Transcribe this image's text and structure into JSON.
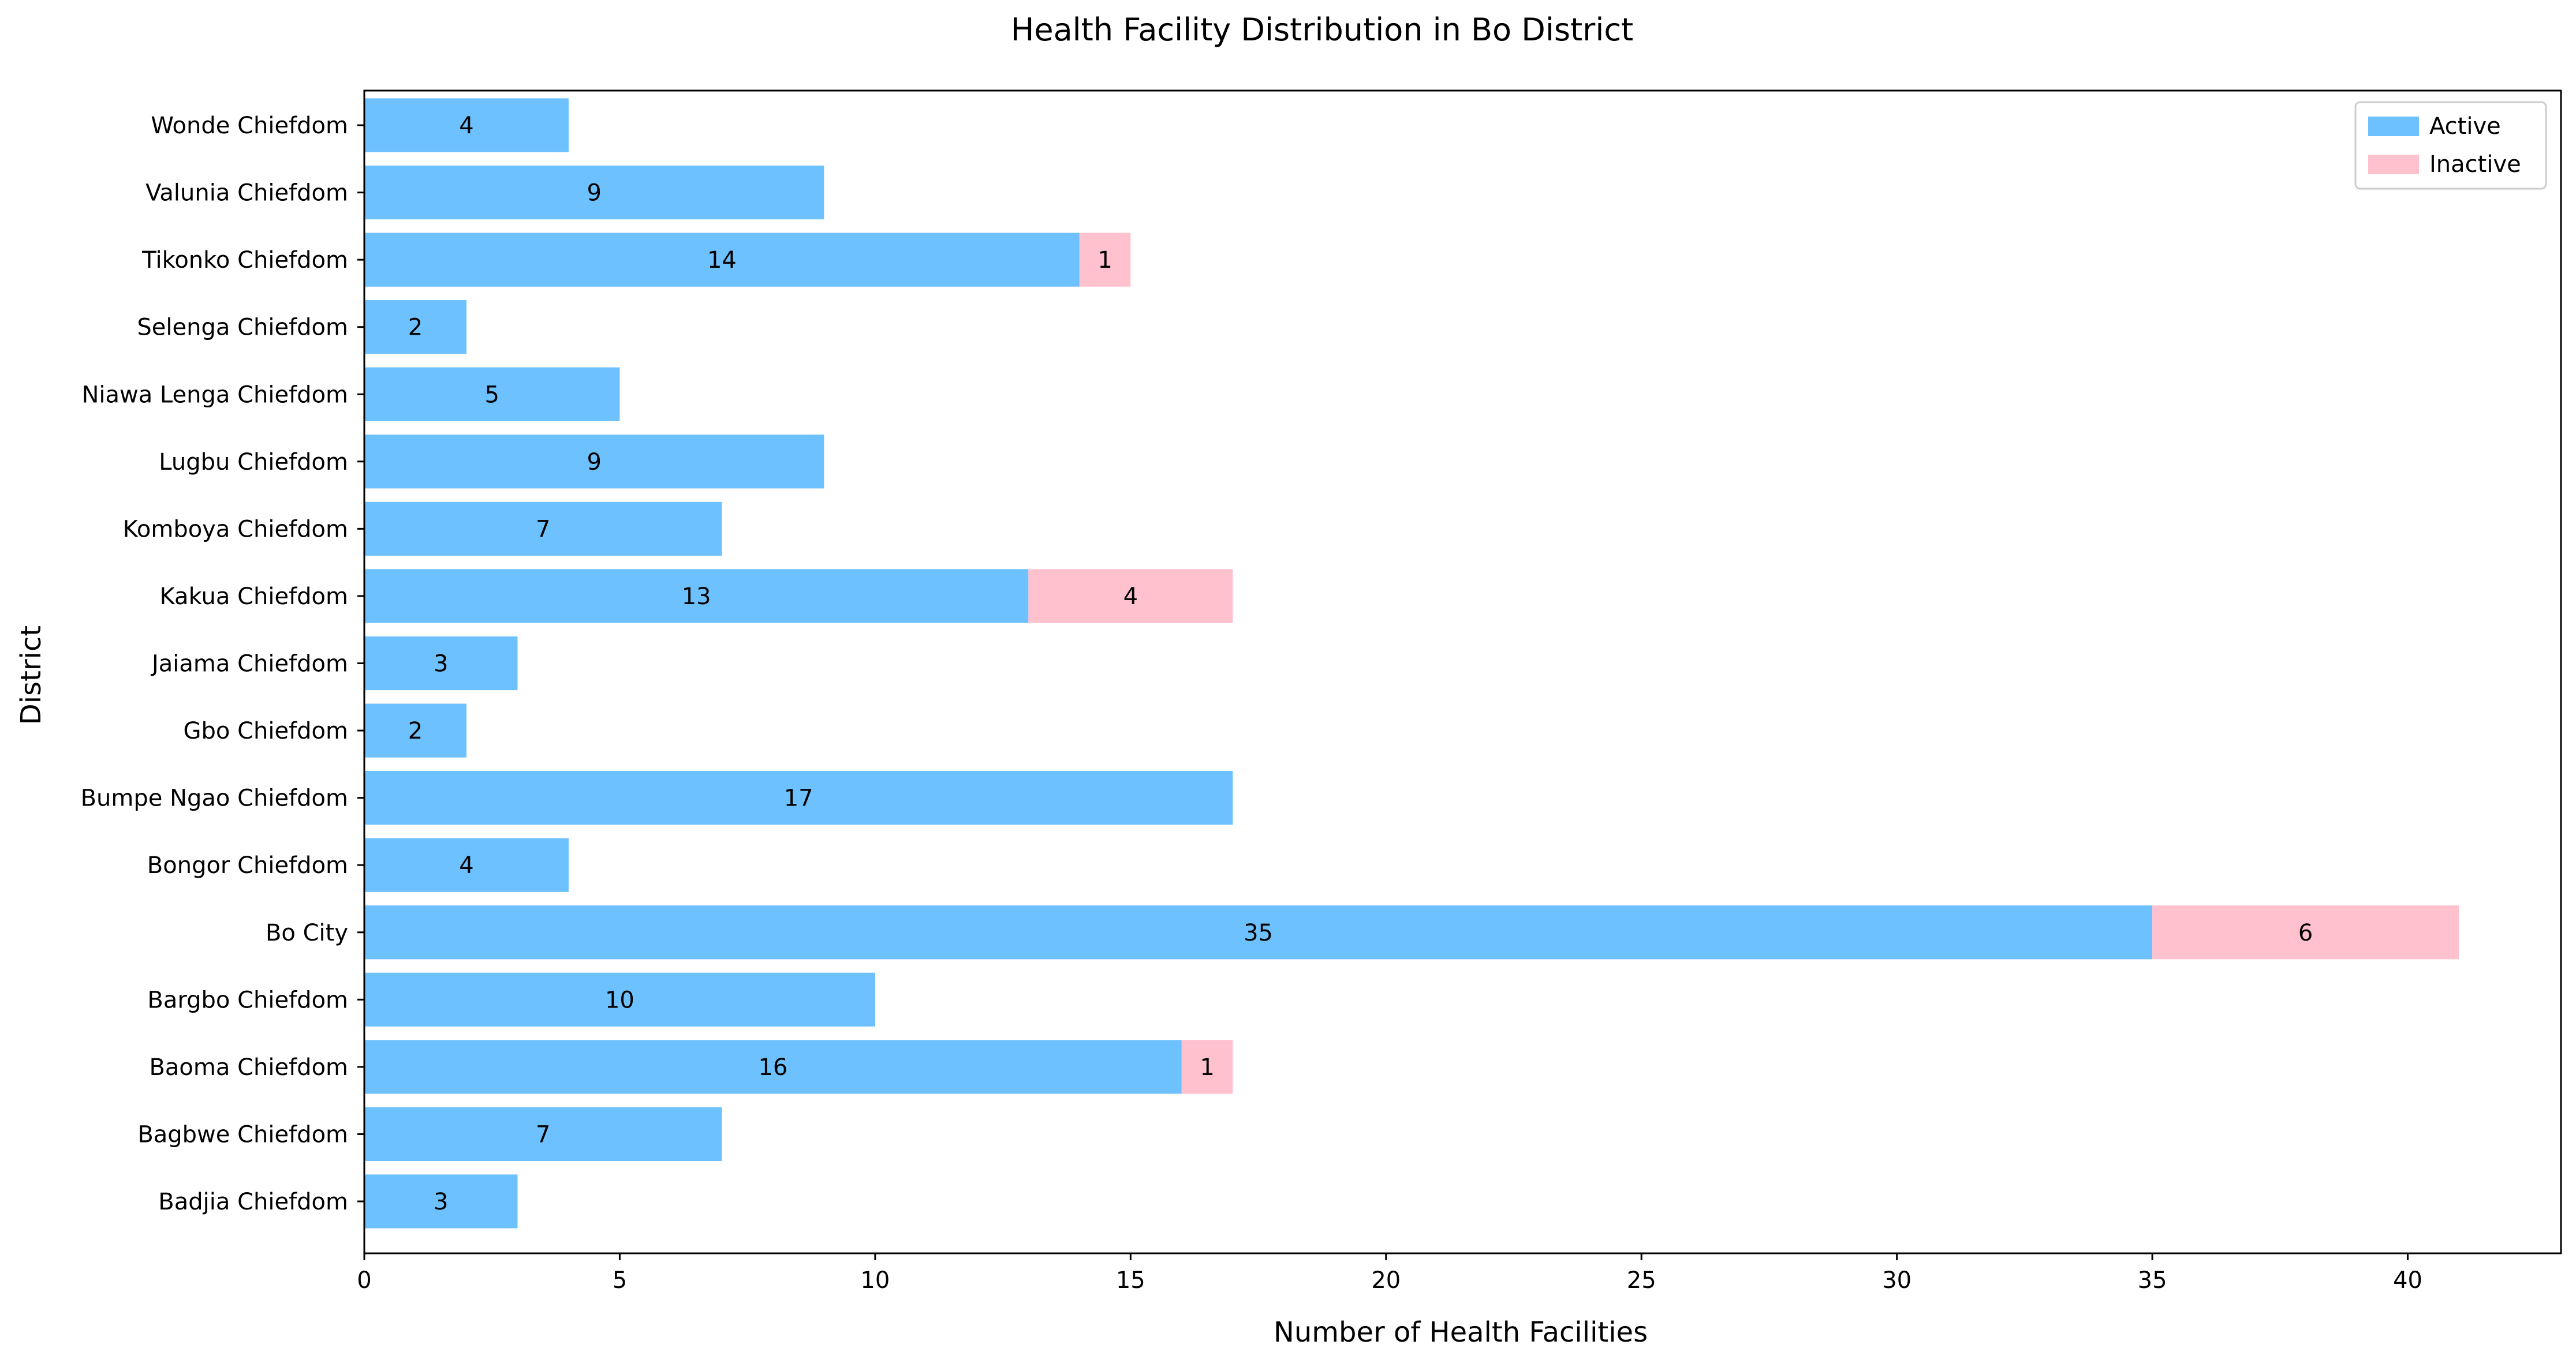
{
  "chart_data": {
    "type": "bar",
    "orientation": "horizontal",
    "stacked": true,
    "title": "Health Facility Distribution in Bo District",
    "xlabel": "Number of Health Facilities",
    "ylabel": "District",
    "xlim": [
      0,
      43
    ],
    "xticks": [
      0,
      5,
      10,
      15,
      20,
      25,
      30,
      35,
      40
    ],
    "grid": false,
    "legend_position": "top-right",
    "categories": [
      "Badjia Chiefdom",
      "Bagbwe Chiefdom",
      "Baoma Chiefdom",
      "Bargbo Chiefdom",
      "Bo City",
      "Bongor Chiefdom",
      "Bumpe Ngao Chiefdom",
      "Gbo Chiefdom",
      "Jaiama Chiefdom",
      "Kakua Chiefdom",
      "Komboya Chiefdom",
      "Lugbu Chiefdom",
      "Niawa Lenga Chiefdom",
      "Selenga Chiefdom",
      "Tikonko Chiefdom",
      "Valunia Chiefdom",
      "Wonde Chiefdom"
    ],
    "series": [
      {
        "name": "Active",
        "color": "#6EC1FF",
        "values": [
          3,
          7,
          16,
          10,
          35,
          4,
          17,
          2,
          3,
          13,
          7,
          9,
          5,
          2,
          14,
          9,
          4
        ]
      },
      {
        "name": "Inactive",
        "color": "#FFC1CD",
        "values": [
          0,
          0,
          1,
          0,
          6,
          0,
          0,
          0,
          0,
          4,
          0,
          0,
          0,
          0,
          1,
          0,
          0
        ]
      }
    ]
  }
}
